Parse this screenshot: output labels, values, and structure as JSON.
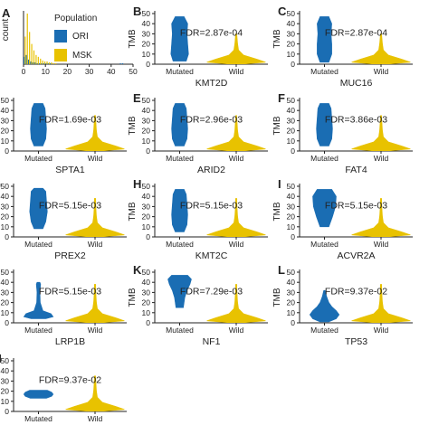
{
  "colors": {
    "ori": "#1a6db3",
    "msk": "#e8c200",
    "axis": "#222222",
    "text": "#222222"
  },
  "chart_data": [
    {
      "type": "bar",
      "panel_letter": "A",
      "ylabel": "count",
      "xlim": [
        0,
        50
      ],
      "x_ticks": [
        "0",
        "10",
        "20",
        "30",
        "40",
        "50"
      ],
      "legend_title": "Population",
      "legend_position": "inside top-right",
      "series": [
        {
          "name": "ORI",
          "color": "#1a6db3",
          "bins": [
            0,
            1,
            2,
            3,
            4,
            5,
            6,
            7,
            8,
            9,
            10,
            11,
            12,
            44,
            45
          ],
          "counts": [
            8,
            10,
            5,
            3,
            2,
            2,
            1,
            1,
            1,
            1,
            1,
            1,
            1,
            1,
            1
          ]
        },
        {
          "name": "MSK",
          "color": "#e8c200",
          "bins": [
            0,
            1,
            2,
            3,
            4,
            5,
            6,
            7,
            8,
            9,
            10,
            11,
            12,
            13,
            14
          ],
          "counts": [
            30,
            55,
            35,
            22,
            15,
            10,
            8,
            6,
            4,
            3,
            3,
            2,
            2,
            1,
            1
          ]
        }
      ]
    },
    {
      "type": "violin",
      "panel_letter": "B",
      "gene": "KMT2D",
      "annotation": "FDR=2.87e-04",
      "ylabel": "TMB",
      "ylim": [
        0,
        50
      ],
      "y_ticks": [
        "0",
        "10",
        "20",
        "30",
        "40",
        "50"
      ],
      "categories": [
        "Mutated",
        "Wild"
      ],
      "mutated": {
        "profile": [
          [
            3,
            0.45
          ],
          [
            10,
            0.6
          ],
          [
            20,
            0.55
          ],
          [
            30,
            0.5
          ],
          [
            40,
            0.55
          ],
          [
            47,
            0.3
          ]
        ]
      },
      "wild": {
        "profile": [
          [
            0.3,
            0.3
          ],
          [
            2,
            1.0
          ],
          [
            5,
            0.7
          ],
          [
            9,
            0.25
          ],
          [
            14,
            0.08
          ],
          [
            20,
            0.05
          ],
          [
            26,
            0.03
          ],
          [
            30,
            0.02
          ]
        ]
      }
    },
    {
      "type": "violin",
      "panel_letter": "C",
      "gene": "MUC16",
      "annotation": "FDR=2.87e-04",
      "ylabel": "TMB",
      "ylim": [
        0,
        50
      ],
      "y_ticks": [
        "0",
        "10",
        "20",
        "30",
        "40",
        "50"
      ],
      "categories": [
        "Mutated",
        "Wild"
      ],
      "mutated": {
        "profile": [
          [
            2,
            0.3
          ],
          [
            10,
            0.5
          ],
          [
            20,
            0.5
          ],
          [
            30,
            0.45
          ],
          [
            40,
            0.5
          ],
          [
            47,
            0.3
          ]
        ]
      },
      "wild": {
        "profile": [
          [
            0.3,
            0.3
          ],
          [
            2,
            1.0
          ],
          [
            5,
            0.7
          ],
          [
            9,
            0.25
          ],
          [
            14,
            0.08
          ],
          [
            20,
            0.05
          ],
          [
            26,
            0.03
          ],
          [
            30,
            0.02
          ]
        ]
      }
    },
    {
      "type": "violin",
      "panel_letter": "D",
      "gene": "SPTA1",
      "annotation": "FDR=1.69e-03",
      "ylabel": "TMB",
      "ylim": [
        0,
        50
      ],
      "y_ticks": [
        "0",
        "10",
        "20",
        "30",
        "40",
        "50"
      ],
      "categories": [
        "Mutated",
        "Wild"
      ],
      "mutated": {
        "profile": [
          [
            5,
            0.3
          ],
          [
            12,
            0.5
          ],
          [
            22,
            0.55
          ],
          [
            32,
            0.5
          ],
          [
            42,
            0.45
          ],
          [
            47,
            0.3
          ]
        ]
      },
      "wild": {
        "profile": [
          [
            0.3,
            0.3
          ],
          [
            2,
            1.0
          ],
          [
            5,
            0.7
          ],
          [
            9,
            0.25
          ],
          [
            14,
            0.08
          ],
          [
            20,
            0.05
          ],
          [
            28,
            0.03
          ],
          [
            35,
            0.02
          ]
        ]
      }
    },
    {
      "type": "violin",
      "panel_letter": "E",
      "gene": "ARID2",
      "annotation": "FDR=2.96e-03",
      "ylabel": "TMB",
      "ylim": [
        0,
        50
      ],
      "y_ticks": [
        "0",
        "10",
        "20",
        "30",
        "40",
        "50"
      ],
      "categories": [
        "Mutated",
        "Wild"
      ],
      "mutated": {
        "profile": [
          [
            5,
            0.3
          ],
          [
            12,
            0.5
          ],
          [
            22,
            0.55
          ],
          [
            32,
            0.5
          ],
          [
            42,
            0.45
          ],
          [
            47,
            0.3
          ]
        ]
      },
      "wild": {
        "profile": [
          [
            0.3,
            0.3
          ],
          [
            2,
            1.0
          ],
          [
            5,
            0.7
          ],
          [
            9,
            0.25
          ],
          [
            14,
            0.08
          ],
          [
            20,
            0.05
          ],
          [
            28,
            0.03
          ],
          [
            35,
            0.02
          ]
        ]
      }
    },
    {
      "type": "violin",
      "panel_letter": "F",
      "gene": "FAT4",
      "annotation": "FDR=3.86e-03",
      "ylabel": "TMB",
      "ylim": [
        0,
        50
      ],
      "y_ticks": [
        "0",
        "10",
        "20",
        "30",
        "40",
        "50"
      ],
      "categories": [
        "Mutated",
        "Wild"
      ],
      "mutated": {
        "profile": [
          [
            5,
            0.3
          ],
          [
            12,
            0.5
          ],
          [
            22,
            0.55
          ],
          [
            32,
            0.5
          ],
          [
            42,
            0.45
          ],
          [
            47,
            0.3
          ]
        ]
      },
      "wild": {
        "profile": [
          [
            0.3,
            0.3
          ],
          [
            2,
            1.0
          ],
          [
            5,
            0.7
          ],
          [
            9,
            0.25
          ],
          [
            14,
            0.08
          ],
          [
            20,
            0.05
          ],
          [
            28,
            0.03
          ],
          [
            35,
            0.02
          ]
        ]
      }
    },
    {
      "type": "violin",
      "panel_letter": "G",
      "gene": "PREX2",
      "annotation": "FDR=5.15e-03",
      "ylabel": "TMB",
      "ylim": [
        0,
        50
      ],
      "y_ticks": [
        "0",
        "10",
        "20",
        "30",
        "40",
        "50"
      ],
      "categories": [
        "Mutated",
        "Wild"
      ],
      "mutated": {
        "profile": [
          [
            8,
            0.3
          ],
          [
            15,
            0.5
          ],
          [
            25,
            0.6
          ],
          [
            35,
            0.55
          ],
          [
            45,
            0.5
          ],
          [
            48,
            0.3
          ]
        ]
      },
      "wild": {
        "profile": [
          [
            0.3,
            0.3
          ],
          [
            2,
            1.0
          ],
          [
            5,
            0.7
          ],
          [
            9,
            0.25
          ],
          [
            14,
            0.08
          ],
          [
            20,
            0.05
          ],
          [
            28,
            0.03
          ],
          [
            38,
            0.02
          ]
        ]
      }
    },
    {
      "type": "violin",
      "panel_letter": "H",
      "gene": "KMT2C",
      "annotation": "FDR=5.15e-03",
      "ylabel": "TMB",
      "ylim": [
        0,
        50
      ],
      "y_ticks": [
        "0",
        "10",
        "20",
        "30",
        "40",
        "50"
      ],
      "categories": [
        "Mutated",
        "Wild"
      ],
      "mutated": {
        "profile": [
          [
            5,
            0.3
          ],
          [
            12,
            0.5
          ],
          [
            22,
            0.55
          ],
          [
            32,
            0.5
          ],
          [
            42,
            0.45
          ],
          [
            47,
            0.3
          ]
        ]
      },
      "wild": {
        "profile": [
          [
            0.3,
            0.3
          ],
          [
            2,
            1.0
          ],
          [
            5,
            0.7
          ],
          [
            9,
            0.25
          ],
          [
            14,
            0.08
          ],
          [
            20,
            0.05
          ],
          [
            28,
            0.03
          ],
          [
            38,
            0.02
          ]
        ]
      }
    },
    {
      "type": "violin",
      "panel_letter": "I",
      "gene": "ACVR2A",
      "annotation": "FDR=5.15e-03",
      "ylabel": "TMB",
      "ylim": [
        0,
        50
      ],
      "y_ticks": [
        "0",
        "10",
        "20",
        "30",
        "40",
        "50"
      ],
      "categories": [
        "Mutated",
        "Wild"
      ],
      "mutated": {
        "profile": [
          [
            10,
            0.3
          ],
          [
            20,
            0.55
          ],
          [
            30,
            0.75
          ],
          [
            40,
            0.8
          ],
          [
            47,
            0.5
          ]
        ]
      },
      "wild": {
        "profile": [
          [
            0.3,
            0.3
          ],
          [
            2,
            1.0
          ],
          [
            5,
            0.7
          ],
          [
            9,
            0.25
          ],
          [
            14,
            0.08
          ],
          [
            20,
            0.05
          ],
          [
            28,
            0.03
          ],
          [
            38,
            0.02
          ]
        ]
      }
    },
    {
      "type": "violin",
      "panel_letter": "J",
      "gene": "LRP1B",
      "annotation": "FDR=5.15e-03",
      "ylabel": "TMB",
      "ylim": [
        0,
        50
      ],
      "y_ticks": [
        "0",
        "10",
        "20",
        "30",
        "40",
        "50"
      ],
      "categories": [
        "Mutated",
        "Wild"
      ],
      "mutated": {
        "profile": [
          [
            4,
            0.5
          ],
          [
            6,
            1.0
          ],
          [
            9,
            0.85
          ],
          [
            12,
            0.3
          ],
          [
            20,
            0.12
          ],
          [
            30,
            0.1
          ],
          [
            38,
            0.15
          ],
          [
            40,
            0.1
          ]
        ]
      },
      "wild": {
        "profile": [
          [
            0.3,
            0.3
          ],
          [
            2,
            1.0
          ],
          [
            5,
            0.7
          ],
          [
            9,
            0.25
          ],
          [
            14,
            0.08
          ],
          [
            20,
            0.05
          ],
          [
            28,
            0.03
          ],
          [
            38,
            0.02
          ]
        ]
      }
    },
    {
      "type": "violin",
      "panel_letter": "K",
      "gene": "NF1",
      "annotation": "FDR=7.29e-03",
      "ylabel": "TMB",
      "ylim": [
        0,
        50
      ],
      "y_ticks": [
        "0",
        "10",
        "20",
        "30",
        "40",
        "50"
      ],
      "categories": [
        "Mutated",
        "Wild"
      ],
      "mutated": {
        "profile": [
          [
            15,
            0.25
          ],
          [
            25,
            0.35
          ],
          [
            32,
            0.5
          ],
          [
            38,
            0.7
          ],
          [
            43,
            0.8
          ],
          [
            47,
            0.55
          ]
        ]
      },
      "wild": {
        "profile": [
          [
            0.3,
            0.3
          ],
          [
            2,
            1.0
          ],
          [
            5,
            0.7
          ],
          [
            9,
            0.25
          ],
          [
            14,
            0.08
          ],
          [
            20,
            0.05
          ],
          [
            28,
            0.03
          ],
          [
            38,
            0.02
          ]
        ]
      }
    },
    {
      "type": "violin",
      "panel_letter": "L",
      "gene": "TP53",
      "annotation": "FDR=9.37e-02",
      "ylabel": "TMB",
      "ylim": [
        0,
        50
      ],
      "y_ticks": [
        "0",
        "10",
        "20",
        "30",
        "40",
        "50"
      ],
      "categories": [
        "Mutated",
        "Wild"
      ],
      "mutated": {
        "profile": [
          [
            1,
            0.3
          ],
          [
            4,
            0.8
          ],
          [
            8,
            1.0
          ],
          [
            12,
            0.8
          ],
          [
            16,
            0.5
          ],
          [
            20,
            0.3
          ],
          [
            26,
            0.15
          ],
          [
            32,
            0.05
          ]
        ]
      },
      "wild": {
        "profile": [
          [
            0.3,
            0.3
          ],
          [
            2,
            1.0
          ],
          [
            5,
            0.7
          ],
          [
            9,
            0.25
          ],
          [
            14,
            0.08
          ],
          [
            20,
            0.05
          ],
          [
            28,
            0.03
          ],
          [
            38,
            0.02
          ]
        ]
      }
    },
    {
      "type": "violin",
      "panel_letter": "M",
      "gene": "",
      "annotation": "FDR=9.37e-02",
      "ylabel": "TMB",
      "ylim": [
        0,
        50
      ],
      "y_ticks": [
        "0",
        "10",
        "20",
        "30",
        "40",
        "50"
      ],
      "categories": [
        "Mutated",
        "Wild"
      ],
      "mutated": {
        "profile": [
          [
            13,
            0.55
          ],
          [
            15,
            0.9
          ],
          [
            17,
            1.0
          ],
          [
            19,
            0.9
          ],
          [
            21,
            0.6
          ]
        ]
      },
      "wild": {
        "profile": [
          [
            0.3,
            0.3
          ],
          [
            2,
            1.0
          ],
          [
            5,
            0.7
          ],
          [
            9,
            0.25
          ],
          [
            14,
            0.08
          ],
          [
            20,
            0.05
          ],
          [
            28,
            0.03
          ],
          [
            35,
            0.02
          ]
        ]
      }
    }
  ]
}
